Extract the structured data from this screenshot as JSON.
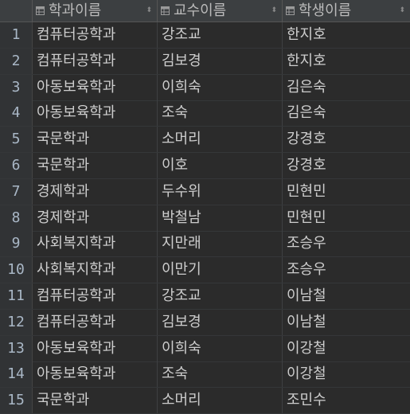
{
  "columns": [
    {
      "label": "학과이름",
      "icon": "table-column-icon",
      "sort_icon": "⬍"
    },
    {
      "label": "교수이름",
      "icon": "table-column-icon",
      "sort_icon": "⬍"
    },
    {
      "label": "학생이름",
      "icon": "table-column-icon",
      "sort_icon": "⬍"
    }
  ],
  "rows": [
    {
      "num": "1",
      "dept": "컴퓨터공학과",
      "prof": "강조교",
      "student": "한지호"
    },
    {
      "num": "2",
      "dept": "컴퓨터공학과",
      "prof": "김보경",
      "student": "한지호"
    },
    {
      "num": "3",
      "dept": "아동보육학과",
      "prof": "이희숙",
      "student": "김은숙"
    },
    {
      "num": "4",
      "dept": "아동보육학과",
      "prof": "조숙",
      "student": "김은숙"
    },
    {
      "num": "5",
      "dept": "국문학과",
      "prof": "소머리",
      "student": "강경호"
    },
    {
      "num": "6",
      "dept": "국문학과",
      "prof": "이호",
      "student": "강경호"
    },
    {
      "num": "7",
      "dept": "경제학과",
      "prof": "두수위",
      "student": "민현민"
    },
    {
      "num": "8",
      "dept": "경제학과",
      "prof": "박철남",
      "student": "민현민"
    },
    {
      "num": "9",
      "dept": "사회복지학과",
      "prof": "지만래",
      "student": "조승우"
    },
    {
      "num": "10",
      "dept": "사회복지학과",
      "prof": "이만기",
      "student": "조승우"
    },
    {
      "num": "11",
      "dept": "컴퓨터공학과",
      "prof": "강조교",
      "student": "이남철"
    },
    {
      "num": "12",
      "dept": "컴퓨터공학과",
      "prof": "김보경",
      "student": "이남철"
    },
    {
      "num": "13",
      "dept": "아동보육학과",
      "prof": "이희숙",
      "student": "이강철"
    },
    {
      "num": "14",
      "dept": "아동보육학과",
      "prof": "조숙",
      "student": "이강철"
    },
    {
      "num": "15",
      "dept": "국문학과",
      "prof": "소머리",
      "student": "조민수"
    }
  ],
  "colors": {
    "background": "#2b2b2b",
    "header_bg": "#3c3f41",
    "rownum_bg": "#313335",
    "text": "#cdcdcd",
    "rownum_text": "#a9b7c6"
  }
}
